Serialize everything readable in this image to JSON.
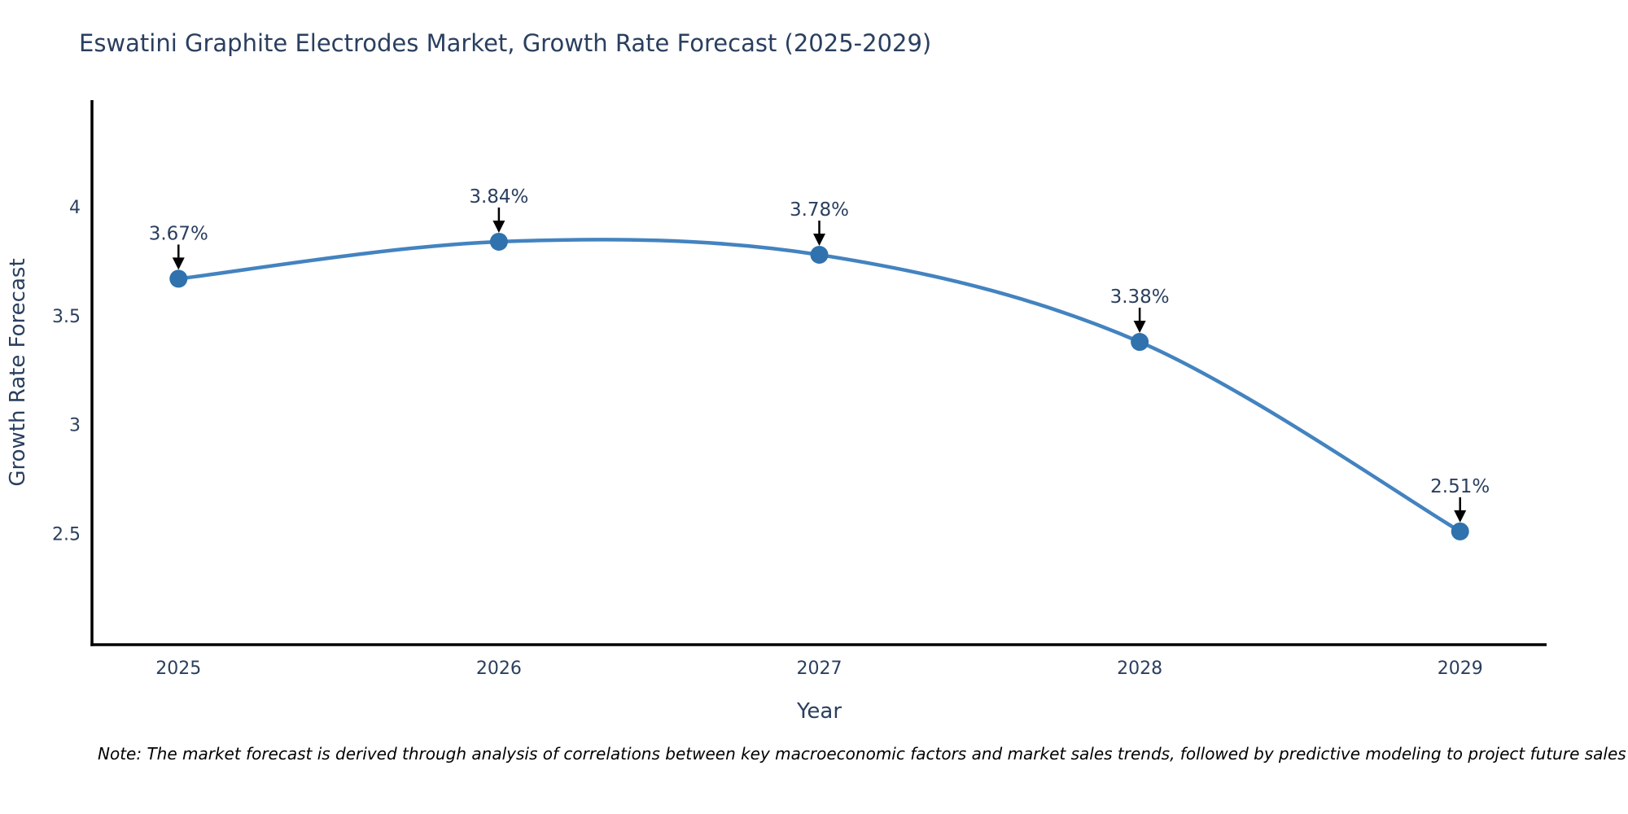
{
  "chart": {
    "title": "Eswatini Graphite Electrodes Market, Growth Rate Forecast (2025-2029)",
    "note": "Note: The market forecast is derived through analysis of correlations between key macroeconomic factors and market sales trends, followed by predictive modeling to project future sales"
  },
  "chart_data": {
    "type": "line",
    "title": "Eswatini Graphite Electrodes Market, Growth Rate Forecast (2025-2029)",
    "categories": [
      2025,
      2026,
      2027,
      2028,
      2029
    ],
    "series": [
      {
        "name": "Growth Rate Forecast",
        "values": [
          3.67,
          3.84,
          3.78,
          3.38,
          2.51
        ]
      }
    ],
    "point_labels": [
      "3.67%",
      "3.84%",
      "3.78%",
      "3.38%",
      "2.51%"
    ],
    "xlabel": "Year",
    "ylabel": "Growth Rate Forecast",
    "xlim": [
      2024.73,
      2029.27
    ],
    "ylim": [
      1.99,
      4.49
    ],
    "yticks": [
      2.5,
      3,
      3.5,
      4
    ],
    "grid": false,
    "legend_visible": false,
    "line_shape": "spline",
    "annotation_style": "label-with-down-arrow",
    "colors": {
      "line": "#4383c0",
      "marker": "#2f72ad",
      "title_text": "#2a3f5f",
      "axis_text": "#2a3f5f",
      "axis_line": "#000000",
      "annotation_text": "#2a3f5f",
      "arrow": "#000000",
      "note_text": "#000000",
      "background": "#ffffff"
    }
  }
}
